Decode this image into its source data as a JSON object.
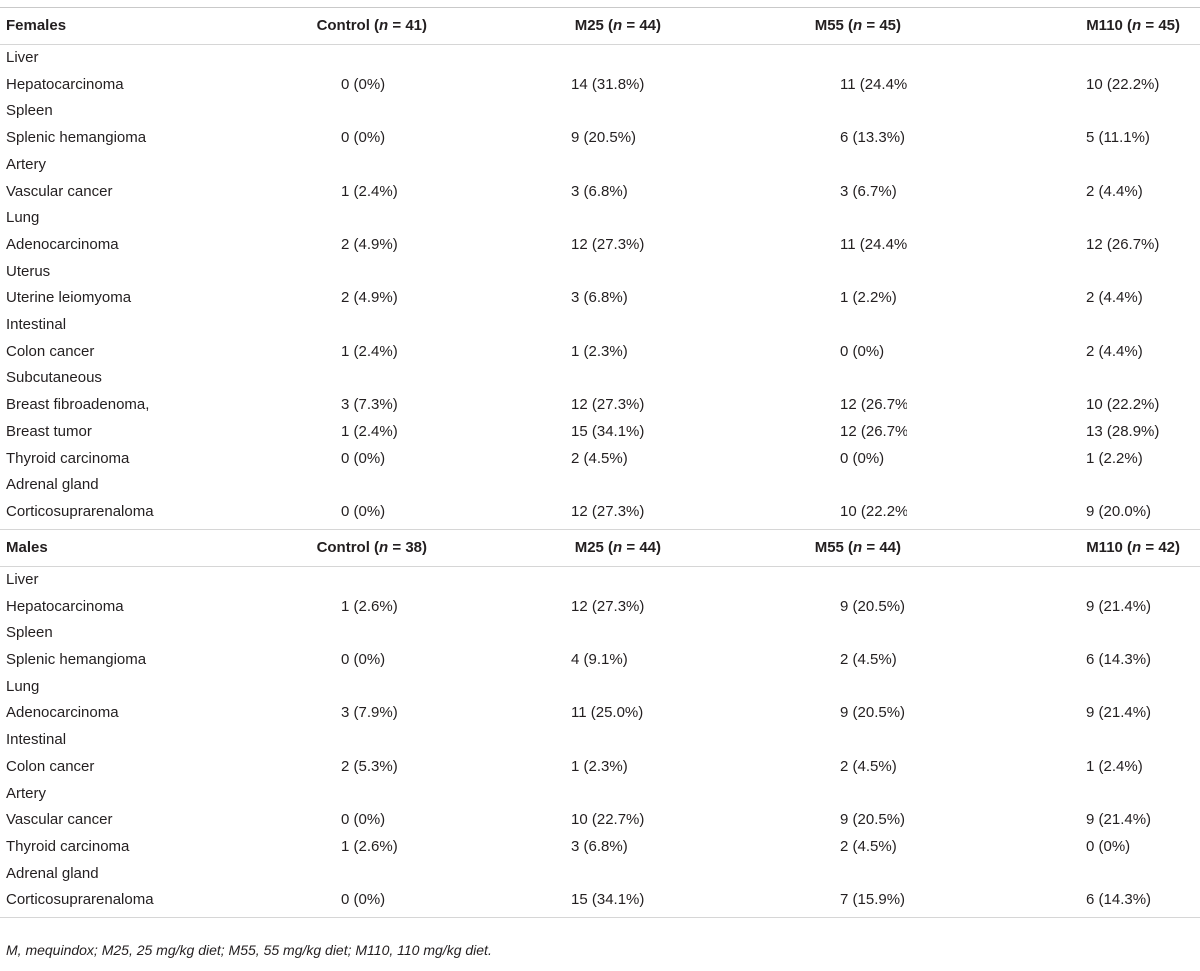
{
  "females": {
    "header": [
      "Females",
      "Control (n = 41)",
      "M25 (n = 44)",
      "M55 (n = 45)",
      "M110 (n = 45)"
    ],
    "rows": [
      [
        "Liver",
        "",
        "",
        "",
        ""
      ],
      [
        "Hepatocarcinoma",
        "0 (0%)",
        "14 (31.8%)",
        "11 (24.4%)",
        "10 (22.2%)"
      ],
      [
        "Spleen",
        "",
        "",
        "",
        ""
      ],
      [
        "Splenic hemangioma",
        "0 (0%)",
        "9 (20.5%)",
        "6 (13.3%)",
        "5 (11.1%)"
      ],
      [
        "Artery",
        "",
        "",
        "",
        ""
      ],
      [
        "Vascular cancer",
        "1 (2.4%)",
        "3 (6.8%)",
        "3 (6.7%)",
        "2 (4.4%)"
      ],
      [
        "Lung",
        "",
        "",
        "",
        ""
      ],
      [
        "Adenocarcinoma",
        "2 (4.9%)",
        "12 (27.3%)",
        "11 (24.4%)",
        "12 (26.7%)"
      ],
      [
        "Uterus",
        "",
        "",
        "",
        ""
      ],
      [
        "Uterine leiomyoma",
        "2 (4.9%)",
        "3 (6.8%)",
        "1 (2.2%)",
        "2 (4.4%)"
      ],
      [
        "Intestinal",
        "",
        "",
        "",
        ""
      ],
      [
        "Colon cancer",
        "1 (2.4%)",
        "1 (2.3%)",
        "0 (0%)",
        "2 (4.4%)"
      ],
      [
        "Subcutaneous",
        "",
        "",
        "",
        ""
      ],
      [
        "Breast fibroadenoma,",
        "3 (7.3%)",
        "12 (27.3%)",
        "12 (26.7%)",
        "10 (22.2%)"
      ],
      [
        "Breast tumor",
        "1 (2.4%)",
        "15 (34.1%)",
        "12 (26.7%)",
        "13 (28.9%)"
      ],
      [
        "Thyroid carcinoma",
        "0 (0%)",
        "2 (4.5%)",
        "0 (0%)",
        "1 (2.2%)"
      ],
      [
        "Adrenal gland",
        "",
        "",
        "",
        ""
      ],
      [
        "Corticosuprarenaloma",
        "0 (0%)",
        "12 (27.3%)",
        "10 (22.2%)",
        "9 (20.0%)"
      ]
    ]
  },
  "males": {
    "header": [
      "Males",
      "Control (n = 38)",
      "M25 (n = 44)",
      "M55 (n = 44)",
      "M110 (n = 42)"
    ],
    "rows": [
      [
        "Liver",
        "",
        "",
        "",
        ""
      ],
      [
        "Hepatocarcinoma",
        "1 (2.6%)",
        "12 (27.3%)",
        "9 (20.5%)",
        "9 (21.4%)"
      ],
      [
        "Spleen",
        "",
        "",
        "",
        ""
      ],
      [
        "Splenic hemangioma",
        "0 (0%)",
        "4 (9.1%)",
        "2 (4.5%)",
        "6 (14.3%)"
      ],
      [
        "Lung",
        "",
        "",
        "",
        ""
      ],
      [
        "Adenocarcinoma",
        "3 (7.9%)",
        "11 (25.0%)",
        "9 (20.5%)",
        "9 (21.4%)"
      ],
      [
        "Intestinal",
        "",
        "",
        "",
        ""
      ],
      [
        "Colon cancer",
        "2 (5.3%)",
        "1 (2.3%)",
        "2 (4.5%)",
        "1 (2.4%)"
      ],
      [
        "Artery",
        "",
        "",
        "",
        ""
      ],
      [
        "Vascular cancer",
        "0 (0%)",
        "10 (22.7%)",
        "9 (20.5%)",
        "9 (21.4%)"
      ],
      [
        "Thyroid carcinoma",
        "1 (2.6%)",
        "3 (6.8%)",
        "2 (4.5%)",
        "0 (0%)"
      ],
      [
        "Adrenal gland",
        "",
        "",
        "",
        ""
      ],
      [
        "Corticosuprarenaloma",
        "0 (0%)",
        "15 (34.1%)",
        "7 (15.9%)",
        "6 (14.3%)"
      ]
    ]
  },
  "footnote": "M, mequindox; M25, 25 mg/kg diet; M55, 55 mg/kg diet; M110, 110 mg/kg diet."
}
